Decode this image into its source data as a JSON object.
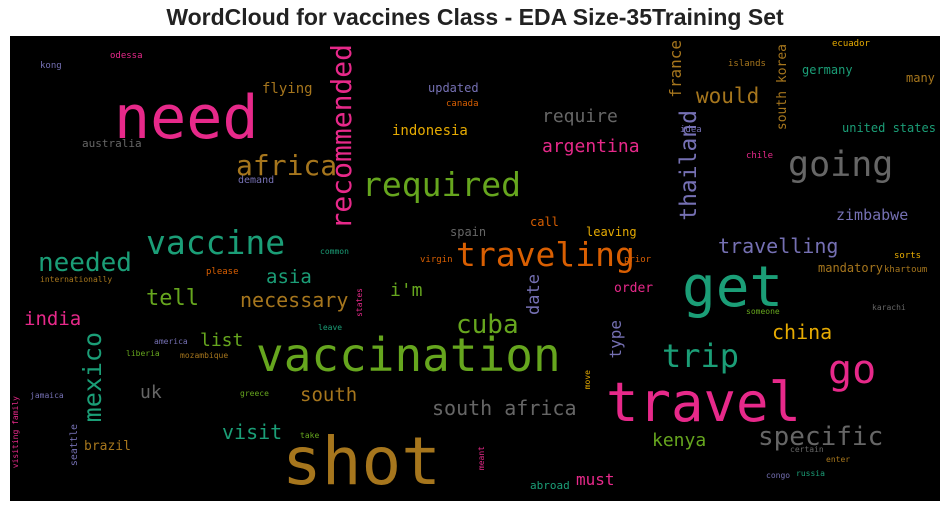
{
  "title": "WordCloud for vaccines Class - EDA Size-35Training Set",
  "colors": {
    "background": "#000000",
    "pink": "#e7298a",
    "green": "#1b9e77",
    "orange": "#d95f02",
    "purple": "#7570b3",
    "lime": "#66a61e",
    "gold": "#e6ab02",
    "brown": "#a6761d",
    "gray": "#666666"
  },
  "words": [
    {
      "text": "need",
      "color": "pink"
    },
    {
      "text": "shot",
      "color": "brown"
    },
    {
      "text": "travel",
      "color": "pink"
    },
    {
      "text": "vaccination",
      "color": "lime"
    },
    {
      "text": "get",
      "color": "green"
    },
    {
      "text": "go",
      "color": "pink"
    },
    {
      "text": "vaccine",
      "color": "green"
    },
    {
      "text": "required",
      "color": "lime"
    },
    {
      "text": "traveling",
      "color": "orange"
    },
    {
      "text": "going",
      "color": "gray"
    },
    {
      "text": "africa",
      "color": "brown"
    },
    {
      "text": "trip",
      "color": "green"
    },
    {
      "text": "recommended",
      "color": "pink"
    },
    {
      "text": "mexico",
      "color": "green"
    },
    {
      "text": "specific",
      "color": "gray"
    },
    {
      "text": "cuba",
      "color": "lime"
    },
    {
      "text": "thailand",
      "color": "purple"
    },
    {
      "text": "needed",
      "color": "green"
    },
    {
      "text": "south africa",
      "color": "gray"
    },
    {
      "text": "would",
      "color": "brown"
    },
    {
      "text": "travelling",
      "color": "purple"
    },
    {
      "text": "tell",
      "color": "lime"
    },
    {
      "text": "necessary",
      "color": "brown"
    },
    {
      "text": "asia",
      "color": "green"
    },
    {
      "text": "china",
      "color": "gold"
    },
    {
      "text": "argentina",
      "color": "pink"
    },
    {
      "text": "require",
      "color": "gray"
    },
    {
      "text": "india",
      "color": "pink"
    },
    {
      "text": "visit",
      "color": "green"
    },
    {
      "text": "kenya",
      "color": "lime"
    },
    {
      "text": "south",
      "color": "brown"
    },
    {
      "text": "list",
      "color": "lime"
    },
    {
      "text": "must",
      "color": "pink"
    },
    {
      "text": "france",
      "color": "brown"
    },
    {
      "text": "zimbabwe",
      "color": "purple"
    },
    {
      "text": "i'm",
      "color": "lime"
    },
    {
      "text": "uk",
      "color": "gray"
    },
    {
      "text": "date",
      "color": "purple"
    },
    {
      "text": "type",
      "color": "purple"
    },
    {
      "text": "flying",
      "color": "brown"
    },
    {
      "text": "indonesia",
      "color": "gold"
    },
    {
      "text": "south korea",
      "color": "brown"
    },
    {
      "text": "united states",
      "color": "green"
    },
    {
      "text": "mandatory",
      "color": "brown"
    },
    {
      "text": "updated",
      "color": "purple"
    },
    {
      "text": "order",
      "color": "pink"
    },
    {
      "text": "brazil",
      "color": "brown"
    },
    {
      "text": "leaving",
      "color": "gold"
    },
    {
      "text": "germany",
      "color": "green"
    },
    {
      "text": "many",
      "color": "brown"
    },
    {
      "text": "australia",
      "color": "gray"
    },
    {
      "text": "call",
      "color": "orange"
    },
    {
      "text": "spain",
      "color": "gray"
    },
    {
      "text": "abroad",
      "color": "green"
    },
    {
      "text": "demand",
      "color": "purple"
    },
    {
      "text": "sorts",
      "color": "gold"
    },
    {
      "text": "khartoum",
      "color": "brown"
    },
    {
      "text": "seattle",
      "color": "purple"
    },
    {
      "text": "kong",
      "color": "purple"
    },
    {
      "text": "odessa",
      "color": "pink"
    },
    {
      "text": "islands",
      "color": "brown"
    },
    {
      "text": "ecuador",
      "color": "gold"
    },
    {
      "text": "canada",
      "color": "orange"
    },
    {
      "text": "idea",
      "color": "purple"
    },
    {
      "text": "chile",
      "color": "pink"
    },
    {
      "text": "common",
      "color": "green"
    },
    {
      "text": "please",
      "color": "orange"
    },
    {
      "text": "virgin",
      "color": "orange"
    },
    {
      "text": "prior",
      "color": "orange"
    },
    {
      "text": "internationally",
      "color": "brown"
    },
    {
      "text": "states",
      "color": "pink"
    },
    {
      "text": "leave",
      "color": "green"
    },
    {
      "text": "america",
      "color": "purple"
    },
    {
      "text": "liberia",
      "color": "lime"
    },
    {
      "text": "mozambique",
      "color": "brown"
    },
    {
      "text": "someone",
      "color": "lime"
    },
    {
      "text": "karachi",
      "color": "gray"
    },
    {
      "text": "jamaica",
      "color": "purple"
    },
    {
      "text": "greece",
      "color": "lime"
    },
    {
      "text": "take",
      "color": "lime"
    },
    {
      "text": "move",
      "color": "gold"
    },
    {
      "text": "meant",
      "color": "pink"
    },
    {
      "text": "certain",
      "color": "gray"
    },
    {
      "text": "enter",
      "color": "brown"
    },
    {
      "text": "congo",
      "color": "purple"
    },
    {
      "text": "russia",
      "color": "green"
    },
    {
      "text": "visiting family",
      "color": "pink"
    }
  ]
}
